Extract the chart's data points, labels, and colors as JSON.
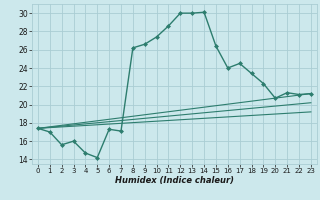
{
  "title": "",
  "xlabel": "Humidex (Indice chaleur)",
  "bg_color": "#cce8ec",
  "line_color": "#2d7d6e",
  "grid_color": "#aacdd4",
  "xlim": [
    -0.5,
    23.5
  ],
  "ylim": [
    13.5,
    31
  ],
  "xticks": [
    0,
    1,
    2,
    3,
    4,
    5,
    6,
    7,
    8,
    9,
    10,
    11,
    12,
    13,
    14,
    15,
    16,
    17,
    18,
    19,
    20,
    21,
    22,
    23
  ],
  "yticks": [
    14,
    16,
    18,
    20,
    22,
    24,
    26,
    28,
    30
  ],
  "main_x": [
    0,
    1,
    2,
    3,
    4,
    5,
    6,
    7,
    8,
    9,
    10,
    11,
    12,
    13,
    14,
    15,
    16,
    17,
    18,
    19,
    20,
    21,
    22,
    23
  ],
  "main_y": [
    17.4,
    17.0,
    15.6,
    16.0,
    14.7,
    14.2,
    17.3,
    17.1,
    26.2,
    26.6,
    27.4,
    28.6,
    30.0,
    30.0,
    30.1,
    26.4,
    24.0,
    24.5,
    23.4,
    22.3,
    20.7,
    21.3,
    21.1,
    21.2
  ],
  "line1_x": [
    0,
    23
  ],
  "line1_y": [
    17.4,
    19.2
  ],
  "line2_x": [
    0,
    23
  ],
  "line2_y": [
    17.4,
    20.2
  ],
  "line3_x": [
    0,
    23
  ],
  "line3_y": [
    17.4,
    21.2
  ]
}
